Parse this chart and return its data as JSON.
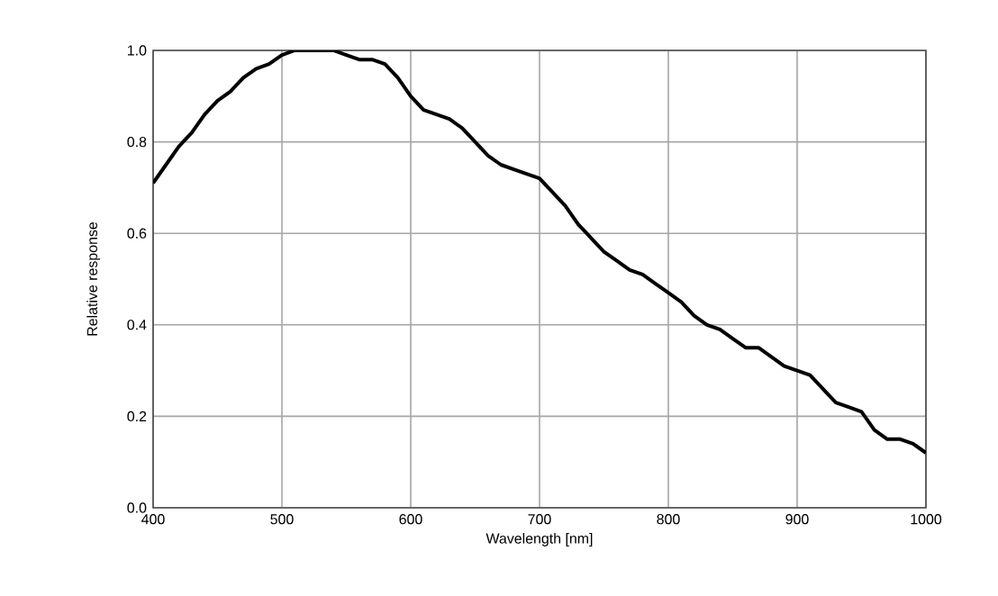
{
  "chart_data": {
    "type": "line",
    "xlabel": "Wavelength [nm]",
    "ylabel": "Relative response",
    "x": [
      400,
      410,
      420,
      430,
      440,
      450,
      460,
      470,
      480,
      490,
      500,
      510,
      520,
      530,
      540,
      550,
      560,
      570,
      580,
      590,
      600,
      610,
      620,
      630,
      640,
      650,
      660,
      670,
      680,
      690,
      700,
      710,
      720,
      730,
      740,
      750,
      760,
      770,
      780,
      790,
      800,
      810,
      820,
      830,
      840,
      850,
      860,
      870,
      880,
      890,
      900,
      910,
      920,
      930,
      940,
      950,
      960,
      970,
      980,
      990,
      1000
    ],
    "series": [
      {
        "color": "#000000",
        "values": [
          0.71,
          0.75,
          0.79,
          0.82,
          0.86,
          0.89,
          0.91,
          0.94,
          0.96,
          0.97,
          0.99,
          1.0,
          1.0,
          1.0,
          1.0,
          0.99,
          0.98,
          0.98,
          0.97,
          0.94,
          0.9,
          0.87,
          0.86,
          0.85,
          0.83,
          0.8,
          0.77,
          0.75,
          0.74,
          0.73,
          0.72,
          0.69,
          0.66,
          0.62,
          0.59,
          0.56,
          0.54,
          0.52,
          0.51,
          0.49,
          0.47,
          0.45,
          0.42,
          0.4,
          0.39,
          0.37,
          0.35,
          0.35,
          0.33,
          0.31,
          0.3,
          0.29,
          0.26,
          0.23,
          0.22,
          0.21,
          0.17,
          0.15,
          0.15,
          0.14,
          0.12
        ]
      }
    ],
    "xlim": [
      400,
      1000
    ],
    "ylim": [
      0,
      1
    ],
    "xticks": [
      400,
      500,
      600,
      700,
      800,
      900,
      1000
    ],
    "yticks": [
      {
        "value": 0,
        "label": "0.0"
      },
      {
        "value": 0.2,
        "label": "0.2"
      },
      {
        "value": 0.4,
        "label": "0.4"
      },
      {
        "value": 0.6,
        "label": "0.6"
      },
      {
        "value": 0.8,
        "label": "0.8"
      },
      {
        "value": 1,
        "label": "1.0"
      }
    ],
    "grid": true,
    "marker": "none",
    "line_style": "solid"
  }
}
